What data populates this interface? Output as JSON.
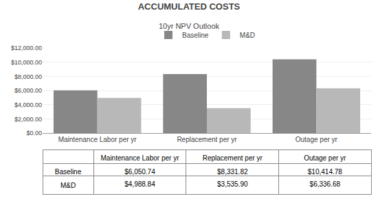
{
  "chart_data": {
    "type": "bar",
    "title": "ACCUMULATED COSTS",
    "subtitle": "10yr NPV Outlook",
    "categories": [
      "Maintenance Labor per yr",
      "Replacement per yr",
      "Outage per yr"
    ],
    "series": [
      {
        "name": "Baseline",
        "color": "#878787",
        "values": [
          6050.74,
          8331.82,
          10414.78
        ],
        "value_labels": [
          "$6,050.74",
          "$8,331.82",
          "$10,414.78"
        ]
      },
      {
        "name": "M&D",
        "color": "#b8b8b8",
        "values": [
          4988.84,
          3535.9,
          6336.68
        ],
        "value_labels": [
          "$4,988.84",
          "$3,535.90",
          "$6,336.68"
        ]
      }
    ],
    "ylim": [
      0,
      12000
    ],
    "yticks": [
      {
        "value": 0,
        "label": "$0.00"
      },
      {
        "value": 2000,
        "label": "$2,000.00"
      },
      {
        "value": 4000,
        "label": "$4,000.00"
      },
      {
        "value": 6000,
        "label": "$6,000.00"
      },
      {
        "value": 8000,
        "label": "$8,000.00"
      },
      {
        "value": 10000,
        "label": "$10,000.00"
      },
      {
        "value": 12000,
        "label": "$12,000.00"
      }
    ],
    "grid": true,
    "legend": "top"
  }
}
